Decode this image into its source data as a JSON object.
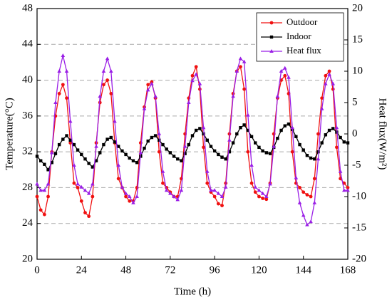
{
  "chart_data": {
    "type": "line",
    "xlabel": "Time (h)",
    "ylabel": "Temperature(°C)",
    "y2label": "Heat flux(W/m²)",
    "x": [
      0,
      2,
      4,
      6,
      8,
      10,
      12,
      14,
      16,
      18,
      20,
      22,
      24,
      26,
      28,
      30,
      32,
      34,
      36,
      38,
      40,
      42,
      44,
      46,
      48,
      50,
      52,
      54,
      56,
      58,
      60,
      62,
      64,
      66,
      68,
      70,
      72,
      74,
      76,
      78,
      80,
      82,
      84,
      86,
      88,
      90,
      92,
      94,
      96,
      98,
      100,
      102,
      104,
      106,
      108,
      110,
      112,
      114,
      116,
      118,
      120,
      122,
      124,
      126,
      128,
      130,
      132,
      134,
      136,
      138,
      140,
      142,
      144,
      146,
      148,
      150,
      152,
      154,
      156,
      158,
      160,
      162,
      164,
      166,
      168
    ],
    "xlim": [
      0,
      168
    ],
    "xticks": [
      0,
      24,
      48,
      72,
      96,
      120,
      144,
      168
    ],
    "ylim": [
      20,
      48
    ],
    "yticks": [
      20,
      24,
      28,
      32,
      36,
      40,
      44,
      48
    ],
    "y2lim": [
      -20,
      20
    ],
    "y2ticks": [
      -20,
      -15,
      -10,
      -5,
      0,
      5,
      10,
      15,
      20
    ],
    "grid": true,
    "legend": "upper right",
    "series": [
      {
        "name": "Outdoor",
        "color": "#f01010",
        "marker": "circle",
        "values": [
          27,
          25.5,
          25,
          27,
          32,
          36,
          38.5,
          39.5,
          38,
          33,
          28.5,
          28,
          26.5,
          25.2,
          24.8,
          27,
          33,
          37.5,
          39.5,
          40,
          38.5,
          33,
          29,
          28,
          27,
          26.5,
          26.5,
          28,
          33,
          37,
          39.5,
          39.8,
          38,
          32,
          28.5,
          28,
          27.5,
          27,
          27,
          29,
          34,
          38,
          40.5,
          41.5,
          39,
          32.5,
          28.5,
          27.5,
          27,
          26.2,
          26,
          28.5,
          34,
          38.5,
          41,
          41.5,
          39,
          32,
          28.5,
          27.5,
          27,
          26.8,
          26.7,
          28.5,
          34,
          38,
          40,
          40.5,
          38.5,
          32,
          28.5,
          28,
          27.5,
          27.2,
          27,
          29,
          34,
          38,
          40.5,
          41,
          39,
          32.5,
          29,
          28.5,
          28
        ]
      },
      {
        "name": "Indoor",
        "color": "#000000",
        "marker": "square",
        "values": [
          31.5,
          31,
          30.6,
          30,
          30.8,
          31.8,
          32.8,
          33.4,
          33.8,
          33.3,
          32.8,
          32.2,
          31.7,
          31.2,
          30.7,
          30.3,
          31,
          31.9,
          32.8,
          33.4,
          33.6,
          33.1,
          32.6,
          32.1,
          31.7,
          31.3,
          31,
          30.8,
          31.5,
          32.4,
          33.2,
          33.6,
          33.8,
          33.3,
          32.8,
          32.3,
          31.9,
          31.5,
          31.2,
          31,
          31.8,
          32.8,
          33.8,
          34.4,
          34.6,
          34,
          33.3,
          32.6,
          32.1,
          31.7,
          31.4,
          31.2,
          32,
          33,
          34,
          34.7,
          35,
          34.4,
          33.7,
          33,
          32.5,
          32.1,
          31.9,
          31.8,
          32.5,
          33.5,
          34.4,
          34.9,
          35.1,
          34.5,
          33.7,
          32.8,
          32.2,
          31.6,
          31.3,
          31.2,
          32,
          33,
          33.9,
          34.4,
          34.6,
          34.2,
          33.6,
          33.1,
          33
        ]
      },
      {
        "name": "Heat flux",
        "color": "#9a1ee6",
        "marker": "triangle",
        "axis": "y2",
        "values": [
          -8,
          -9,
          -9,
          -8,
          -3,
          5,
          10,
          12.5,
          10,
          2,
          -5,
          -8,
          -8.5,
          -9,
          -9.5,
          -8,
          -2,
          6,
          10,
          12,
          10,
          2,
          -5,
          -8.5,
          -9.5,
          -10,
          -11,
          -10,
          -3,
          4,
          7,
          8,
          6,
          0,
          -6,
          -9,
          -9.5,
          -10,
          -10.5,
          -9,
          -2,
          5,
          8.5,
          9.5,
          8,
          1,
          -6,
          -9,
          -9,
          -9.5,
          -10,
          -8.5,
          -1,
          6,
          10,
          12,
          11.5,
          3,
          -5,
          -8.5,
          -9,
          -9.5,
          -10,
          -8,
          -2,
          6,
          10,
          10.5,
          9,
          1,
          -7,
          -11,
          -13,
          -14.5,
          -14,
          -11,
          -4,
          4,
          8,
          9.5,
          8,
          1,
          -6,
          -9,
          -9
        ]
      }
    ]
  }
}
